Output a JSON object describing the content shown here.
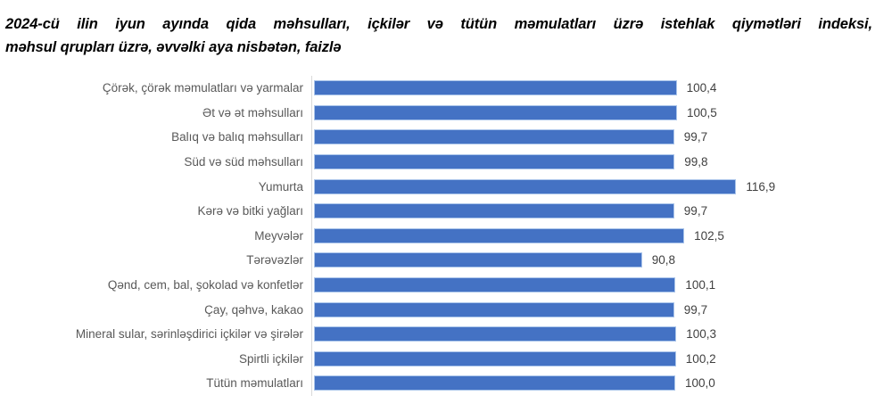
{
  "title": {
    "full": "2024-cü ilin iyun ayında qida məhsulları, içkilər və tütün məmulatları üzrə istehlak qiymətləri indeksi, məhsul qrupları üzrə, əvvəlki aya nisbətən, faizlə",
    "lines": [
      "2024-cü ilin iyun ayında qida məhsulları, içkilər və tütün məmulatları üzrə istehlak qiymətləri indeksi,",
      "məhsul qrupları üzrə, əvvəlki aya nisbətən, faizlə"
    ]
  },
  "chart_data": {
    "type": "bar",
    "orientation": "horizontal",
    "title": "2024-cü ilin iyun ayında qida məhsulları, içkilər və tütün məmulatları üzrə istehlak qiymətləri indeksi, məhsul qrupları üzrə, əvvəlki aya nisbətən, faizlə",
    "categories": [
      "Çörək, çörək məmulatları və yarmalar",
      "Ət və ət məhsulları",
      "Balıq və balıq məhsulları",
      "Süd və süd məhsulları",
      "Yumurta",
      "Kərə və bitki yağları",
      "Meyvələr",
      "Tərəvəzlər",
      "Qənd, cem, bal, şokolad və konfetlər",
      "Çay, qəhvə, kakao",
      "Mineral sular, sərinləşdirici içkilər və şirələr",
      "Spirtli içkilər",
      "Tütün məmulatları"
    ],
    "values": [
      100.4,
      100.5,
      99.7,
      99.8,
      116.9,
      99.7,
      102.5,
      90.8,
      100.1,
      99.7,
      100.3,
      100.2,
      100.0
    ],
    "value_labels": [
      "100,4",
      "100,5",
      "99,7",
      "99,8",
      "116,9",
      "99,7",
      "102,5",
      "90,8",
      "100,1",
      "99,7",
      "100,3",
      "100,2",
      "100,0"
    ],
    "xlim": [
      0,
      120
    ],
    "grid": false,
    "legend": false,
    "data_labels": true,
    "colors": {
      "bar": "#4472C4",
      "bar_border": "#A9C4EA",
      "axis_line": "#D9D9D9",
      "category_label": "#595959",
      "value_label": "#404040",
      "title": "#000000",
      "background": "#FFFFFF"
    }
  }
}
